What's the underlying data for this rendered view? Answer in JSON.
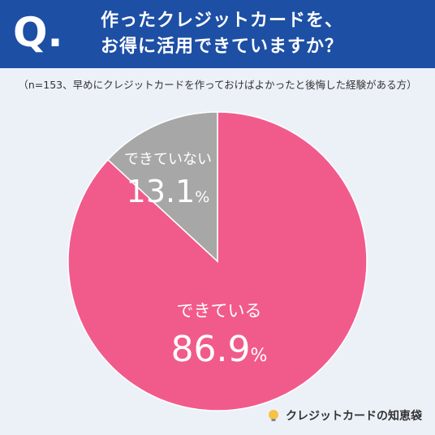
{
  "header": {
    "q_mark": "Q.",
    "title_line1": "作ったクレジットカードを、",
    "title_line2": "お得に活用できていますか？"
  },
  "note": "（n=153、早めにクレジットカードを作っておけばよかったと後悔した経験がある方）",
  "brand": {
    "name": "クレジットカードの知恵袋"
  },
  "colors": {
    "header": "#1d4fa5",
    "yes": "#f15b8c",
    "no": "#a7a7a7",
    "background": "#ecf1f8"
  },
  "chart_data": {
    "type": "pie",
    "slices": [
      {
        "label": "できている",
        "value": 86.9,
        "display": "86.9",
        "unit": "%",
        "color": "#f15b8c"
      },
      {
        "label": "できていない",
        "value": 13.1,
        "display": "13.1",
        "unit": "%",
        "color": "#a7a7a7"
      }
    ],
    "start": "top",
    "direction": "clockwise"
  }
}
